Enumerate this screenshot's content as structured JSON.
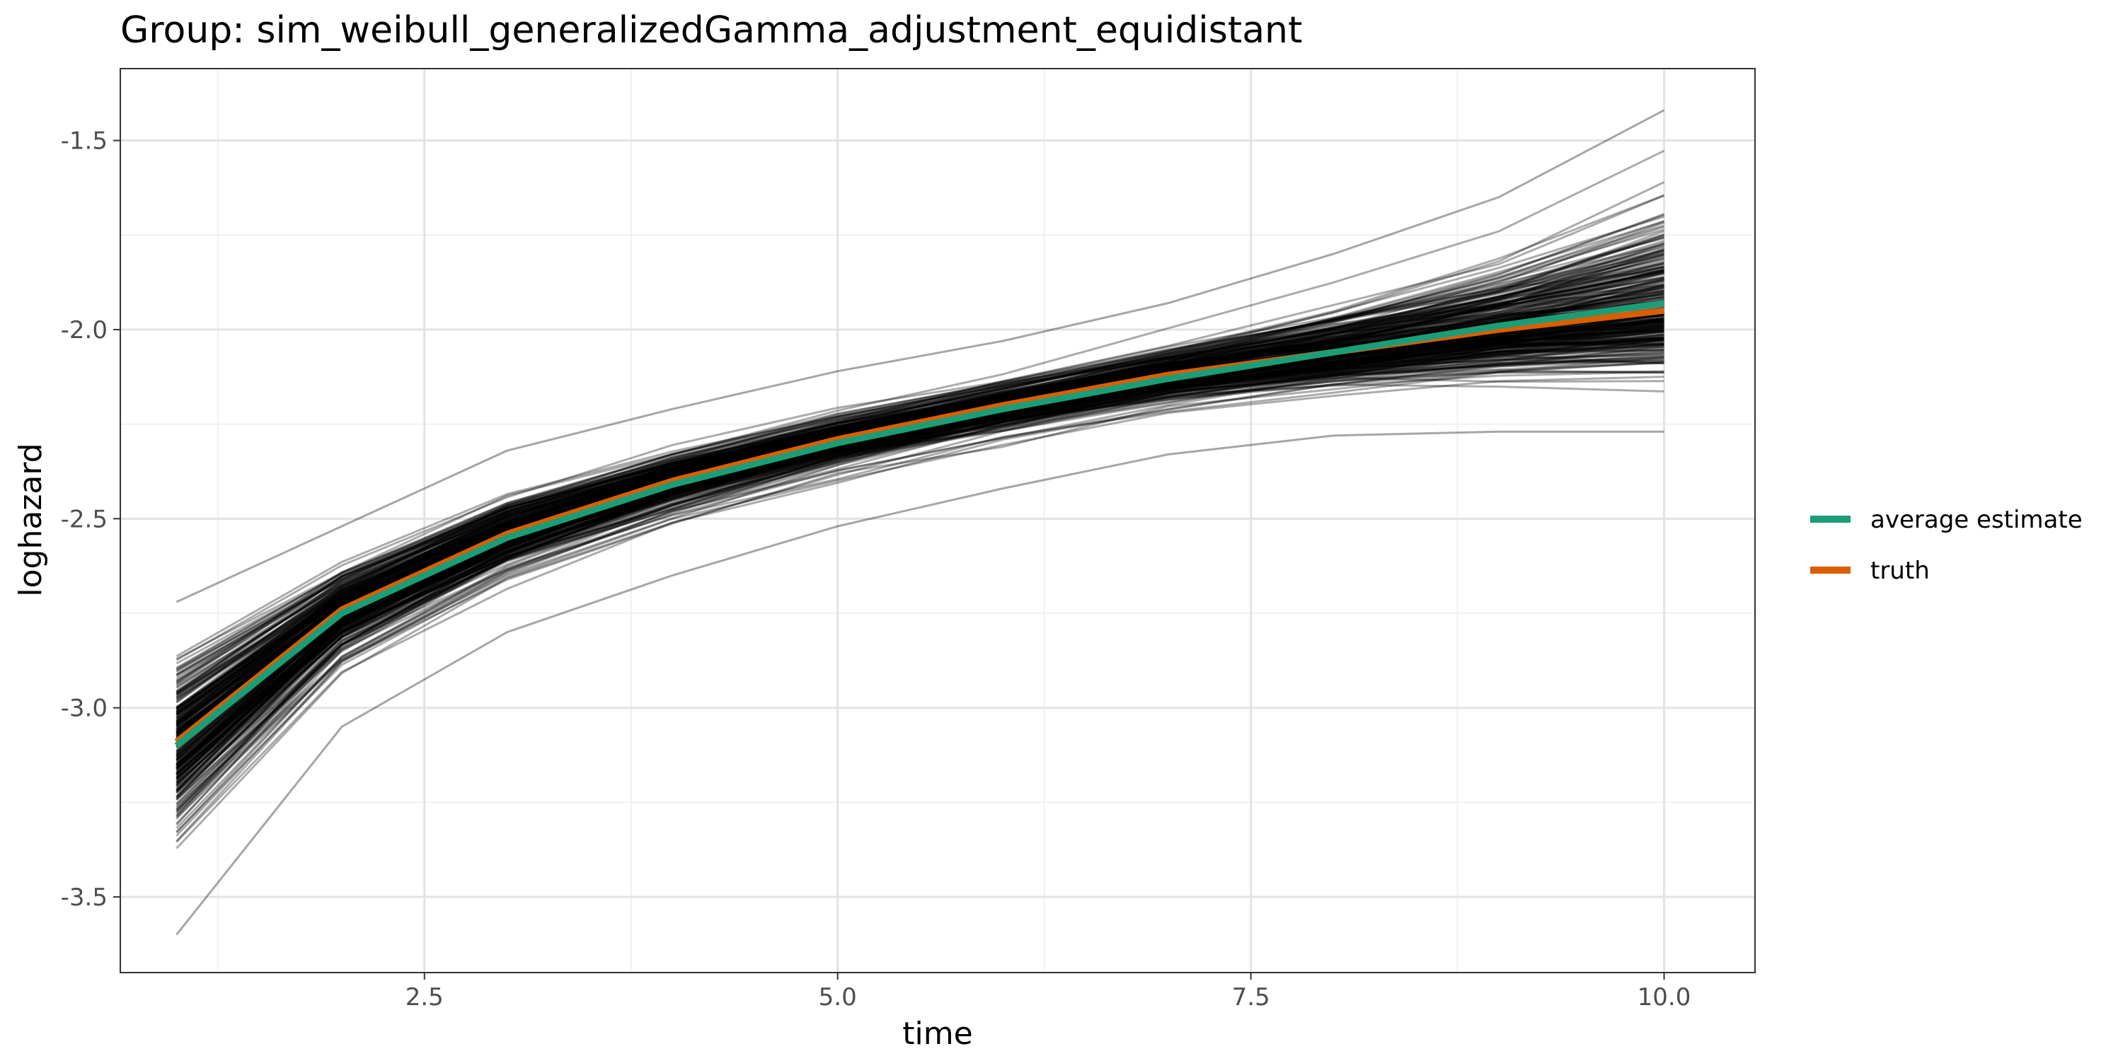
{
  "chart_data": {
    "type": "line",
    "title": "Group: sim_weibull_generalizedGamma_adjustment_equidistant",
    "xlabel": "time",
    "ylabel": "loghazard",
    "xlim": [
      0.66,
      10.55
    ],
    "ylim": [
      -3.7,
      -1.31
    ],
    "xticks": [
      2.5,
      5.0,
      7.5,
      10.0
    ],
    "xtick_labels": [
      "2.5",
      "5.0",
      "7.5",
      "10.0"
    ],
    "yticks": [
      -3.5,
      -3.0,
      -2.5,
      -2.0,
      -1.5
    ],
    "ytick_labels": [
      "-3.5",
      "-3.0",
      "-2.5",
      "-2.0",
      "-1.5"
    ],
    "grid": true,
    "legend_position": "right",
    "x": [
      1,
      2,
      3,
      4,
      5,
      6,
      7,
      8,
      9,
      10
    ],
    "series": [
      {
        "name": "average estimate",
        "color": "#1b9e77",
        "values": [
          -3.1,
          -2.75,
          -2.55,
          -2.41,
          -2.3,
          -2.21,
          -2.13,
          -2.06,
          -1.99,
          -1.93
        ]
      },
      {
        "name": "truth",
        "color": "#d95f02",
        "values": [
          -3.09,
          -2.74,
          -2.54,
          -2.4,
          -2.29,
          -2.2,
          -2.12,
          -2.06,
          -2.0,
          -1.95
        ]
      }
    ],
    "simulation_lines": {
      "count": 300,
      "color": "#000000",
      "opacity": 0.33,
      "description_ranges": {
        "x": [
          1,
          2,
          3,
          4,
          5,
          6,
          7,
          8,
          9,
          10
        ],
        "low": [
          -3.6,
          -3.05,
          -2.8,
          -2.65,
          -2.52,
          -2.42,
          -2.33,
          -2.28,
          -2.27,
          -2.27
        ],
        "high": [
          -2.72,
          -2.52,
          -2.32,
          -2.21,
          -2.11,
          -2.03,
          -1.93,
          -1.8,
          -1.65,
          -1.42
        ]
      }
    }
  }
}
